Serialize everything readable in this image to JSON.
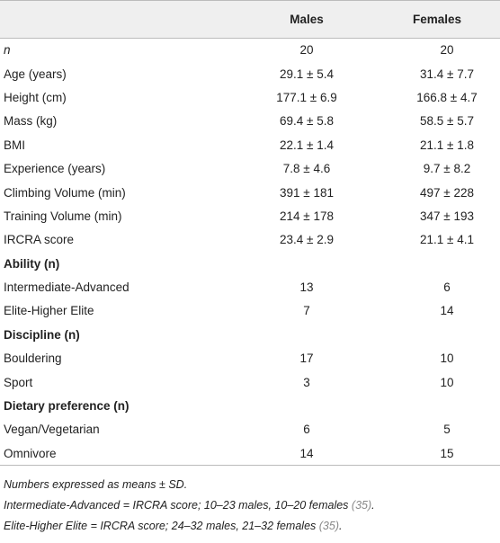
{
  "table": {
    "header": [
      "",
      "Males",
      "Females"
    ],
    "rows": [
      [
        "n",
        "20",
        "20"
      ],
      [
        "Age (years)",
        "29.1 ± 5.4",
        "31.4 ± 7.7"
      ],
      [
        "Height (cm)",
        "177.1 ± 6.9",
        "166.8 ± 4.7"
      ],
      [
        "Mass (kg)",
        "69.4 ± 5.8",
        "58.5 ± 5.7"
      ],
      [
        "BMI",
        "22.1 ± 1.4",
        "21.1 ± 1.8"
      ],
      [
        "Experience (years)",
        "7.8 ± 4.6",
        "9.7 ± 8.2"
      ],
      [
        "Climbing Volume (min)",
        "391 ± 181",
        "497 ± 228"
      ],
      [
        "Training Volume (min)",
        "214 ± 178",
        "347 ± 193"
      ],
      [
        "IRCRA score",
        "23.4 ± 2.9",
        "21.1 ± 4.1"
      ],
      [
        "Ability (n)"
      ],
      [
        "Intermediate-Advanced",
        "13",
        "6"
      ],
      [
        "Elite-Higher Elite",
        "7",
        "14"
      ],
      [
        "Discipline (n)"
      ],
      [
        "Bouldering",
        "17",
        "10"
      ],
      [
        "Sport",
        "3",
        "10"
      ],
      [
        "Dietary preference (n)"
      ],
      [
        "Vegan/Vegetarian",
        "6",
        "5"
      ],
      [
        "Omnivore",
        "14",
        "15"
      ]
    ]
  },
  "footnotes": [
    {
      "text": "Numbers expressed as means ± SD."
    },
    {
      "text": "Intermediate-Advanced = IRCRA score; 10–23 males, 10–20 females ",
      "ref": "(35)",
      "end": "."
    },
    {
      "text": "Elite-Higher Elite = IRCRA score; 24–32 males, 21–32 females ",
      "ref": "(35)",
      "end": "."
    }
  ]
}
